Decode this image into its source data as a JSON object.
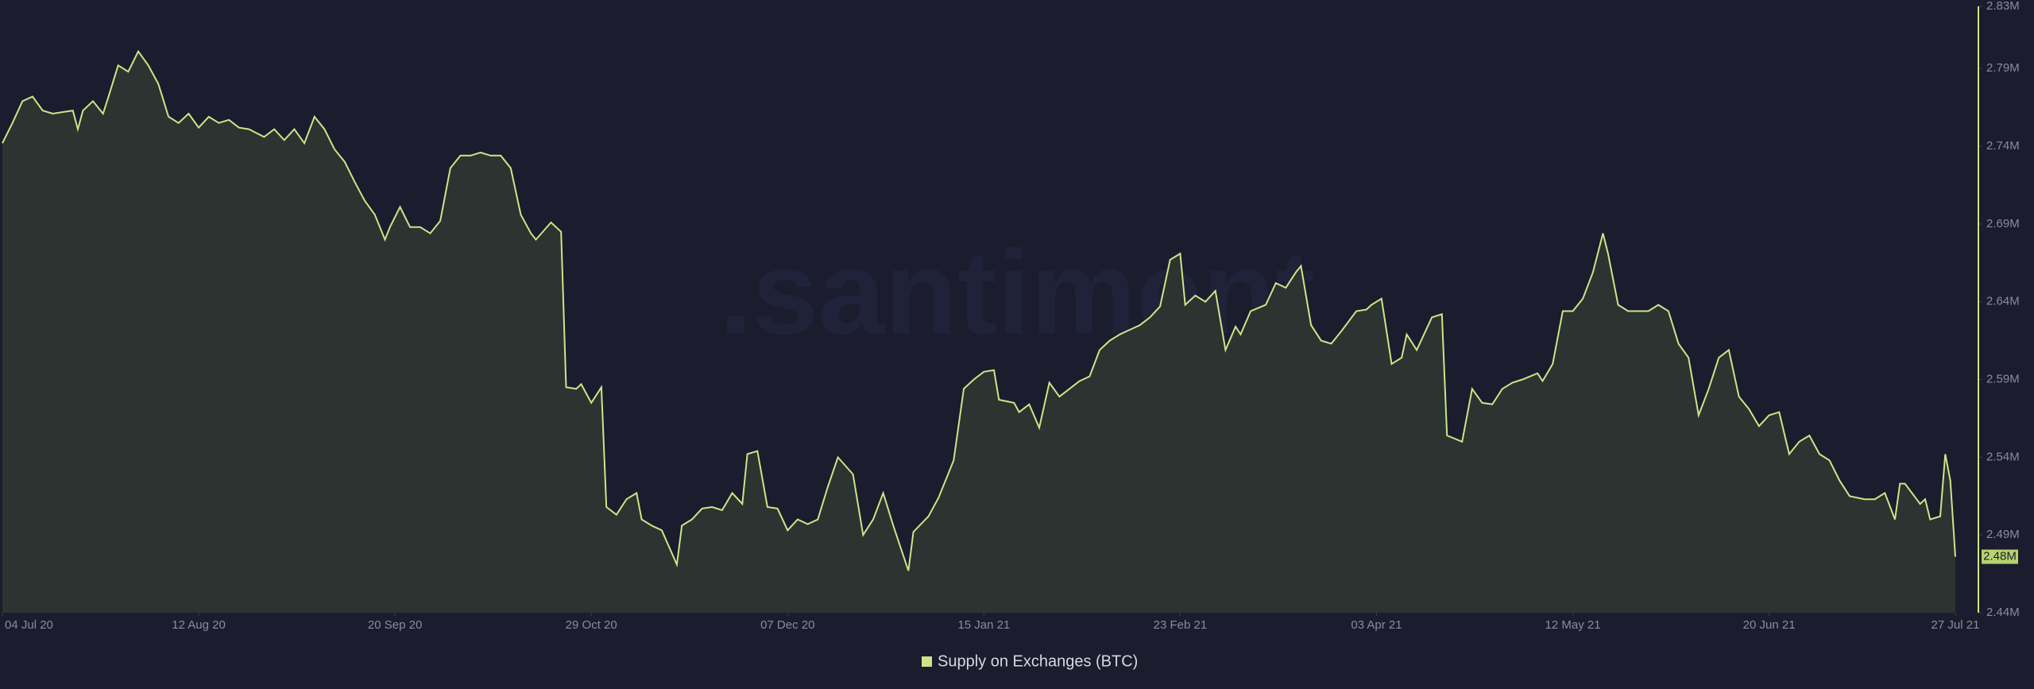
{
  "chart_data": {
    "type": "line",
    "watermark": ".santiment",
    "series": [
      {
        "name": "Supply on Exchanges (BTC)",
        "color": "#cfe486",
        "area_color": "#2b3431",
        "x": [
          0,
          2,
          4,
          6,
          8,
          10,
          12,
          14,
          15,
          16,
          18,
          20,
          21,
          23,
          25,
          27,
          29,
          31,
          33,
          35,
          37,
          39,
          41,
          43,
          45,
          47,
          49,
          52,
          54,
          56,
          58,
          60,
          62,
          64,
          66,
          68,
          70,
          72,
          74,
          76,
          77,
          79,
          81,
          83,
          85,
          87,
          89,
          91,
          93,
          95,
          97,
          99,
          101,
          103,
          105,
          106,
          109,
          111,
          112,
          114,
          115,
          117,
          119,
          120,
          122,
          124,
          126,
          127,
          129,
          131,
          134,
          135,
          137,
          139,
          141,
          143,
          145,
          147,
          148,
          150,
          152,
          154,
          156,
          158,
          160,
          162,
          164,
          166,
          169,
          171,
          173,
          175,
          177,
          180,
          181,
          184,
          186,
          189,
          191,
          193,
          195,
          197,
          198,
          201,
          202,
          204,
          206,
          208,
          210,
          212,
          214,
          216,
          218,
          220,
          222,
          224,
          226,
          228,
          230,
          232,
          234,
          235,
          237,
          239,
          241,
          243,
          245,
          246,
          248,
          251,
          253,
          255,
          257,
          258,
          260,
          262,
          264,
          266,
          269,
          271,
          272,
          274,
          276,
          278,
          279,
          281,
          284,
          286,
          287,
          290,
          292,
          294,
          296,
          298,
          300,
          302,
          305,
          306,
          308,
          310,
          312,
          314,
          316,
          318,
          319,
          321,
          323,
          325,
          327,
          329,
          331,
          333,
          335,
          337,
          339,
          341,
          343,
          345,
          347,
          349,
          351,
          353,
          355,
          357,
          359,
          361,
          363,
          365,
          367,
          370,
          372,
          374,
          376,
          377,
          378,
          381,
          382,
          383,
          385,
          386,
          387,
          388
        ],
        "values": [
          2.742,
          2.755,
          2.769,
          2.772,
          2.763,
          2.761,
          2.762,
          2.763,
          2.751,
          2.763,
          2.769,
          2.761,
          2.771,
          2.792,
          2.788,
          2.801,
          2.792,
          2.78,
          2.759,
          2.755,
          2.761,
          2.752,
          2.759,
          2.755,
          2.757,
          2.752,
          2.751,
          2.746,
          2.751,
          2.744,
          2.751,
          2.742,
          2.759,
          2.751,
          2.738,
          2.73,
          2.717,
          2.705,
          2.696,
          2.68,
          2.688,
          2.701,
          2.688,
          2.688,
          2.684,
          2.692,
          2.726,
          2.734,
          2.734,
          2.736,
          2.734,
          2.734,
          2.726,
          2.696,
          2.684,
          2.68,
          2.691,
          2.685,
          2.585,
          2.584,
          2.587,
          2.575,
          2.585,
          2.508,
          2.503,
          2.513,
          2.517,
          2.5,
          2.496,
          2.493,
          2.471,
          2.496,
          2.5,
          2.507,
          2.508,
          2.506,
          2.517,
          2.51,
          2.542,
          2.544,
          2.508,
          2.507,
          2.493,
          2.5,
          2.497,
          2.5,
          2.521,
          2.54,
          2.529,
          2.49,
          2.5,
          2.517,
          2.496,
          2.467,
          2.492,
          2.502,
          2.514,
          2.538,
          2.584,
          2.59,
          2.595,
          2.596,
          2.577,
          2.575,
          2.569,
          2.574,
          2.559,
          2.588,
          2.579,
          2.584,
          2.589,
          2.592,
          2.609,
          2.615,
          2.619,
          2.622,
          2.625,
          2.63,
          2.637,
          2.667,
          2.671,
          2.638,
          2.644,
          2.64,
          2.647,
          2.609,
          2.624,
          2.619,
          2.634,
          2.638,
          2.652,
          2.649,
          2.659,
          2.663,
          2.625,
          2.615,
          2.613,
          2.621,
          2.634,
          2.635,
          2.638,
          2.642,
          2.6,
          2.604,
          2.619,
          2.609,
          2.63,
          2.632,
          2.554,
          2.55,
          2.584,
          2.575,
          2.574,
          2.584,
          2.588,
          2.59,
          2.594,
          2.589,
          2.6,
          2.634,
          2.634,
          2.642,
          2.659,
          2.684,
          2.671,
          2.638,
          2.634,
          2.634,
          2.634,
          2.638,
          2.634,
          2.613,
          2.604,
          2.567,
          2.584,
          2.604,
          2.609,
          2.579,
          2.571,
          2.56,
          2.567,
          2.569,
          2.542,
          2.55,
          2.554,
          2.542,
          2.538,
          2.525,
          2.515,
          2.513,
          2.513,
          2.517,
          2.5,
          2.523,
          2.523,
          2.51,
          2.513,
          2.5,
          2.502,
          2.542,
          2.525,
          2.476
        ]
      }
    ],
    "last_value_label": "2.48M",
    "xlim": [
      0,
      388
    ],
    "xticks": [
      {
        "value": 0,
        "label": "04 Jul 20"
      },
      {
        "value": 39,
        "label": "12 Aug 20"
      },
      {
        "value": 78,
        "label": "20 Sep 20"
      },
      {
        "value": 117,
        "label": "29 Oct 20"
      },
      {
        "value": 156,
        "label": "07 Dec 20"
      },
      {
        "value": 195,
        "label": "15 Jan 21"
      },
      {
        "value": 234,
        "label": "23 Feb 21"
      },
      {
        "value": 273,
        "label": "03 Apr 21"
      },
      {
        "value": 312,
        "label": "12 May 21"
      },
      {
        "value": 351,
        "label": "20 Jun 21"
      },
      {
        "value": 388,
        "label": "27 Jul 21"
      }
    ],
    "ylim": [
      2.44,
      2.83
    ],
    "yticks": [
      {
        "value": 2.44,
        "label": "2.44M"
      },
      {
        "value": 2.49,
        "label": "2.49M"
      },
      {
        "value": 2.54,
        "label": "2.54M"
      },
      {
        "value": 2.59,
        "label": "2.59M"
      },
      {
        "value": 2.64,
        "label": "2.64M"
      },
      {
        "value": 2.69,
        "label": "2.69M"
      },
      {
        "value": 2.74,
        "label": "2.74M"
      },
      {
        "value": 2.79,
        "label": "2.79M"
      },
      {
        "value": 2.83,
        "label": "2.83M"
      }
    ],
    "legend": "bottom"
  }
}
